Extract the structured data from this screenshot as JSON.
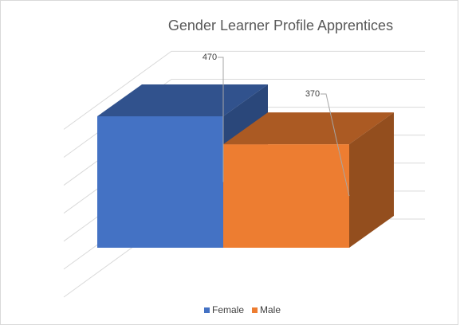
{
  "chart_data": {
    "type": "bar3d",
    "title": "Gender Learner Profile Apprentices",
    "categories": [
      null
    ],
    "series": [
      {
        "name": "Female",
        "color": "#4472c4",
        "values": [
          470
        ]
      },
      {
        "name": "Male",
        "color": "#ed7d31",
        "values": [
          370
        ]
      }
    ],
    "ylim": [
      0,
      600
    ],
    "yticks": [
      0,
      100,
      200,
      300,
      400,
      500,
      600
    ],
    "grid": true,
    "legend": "bottom"
  }
}
